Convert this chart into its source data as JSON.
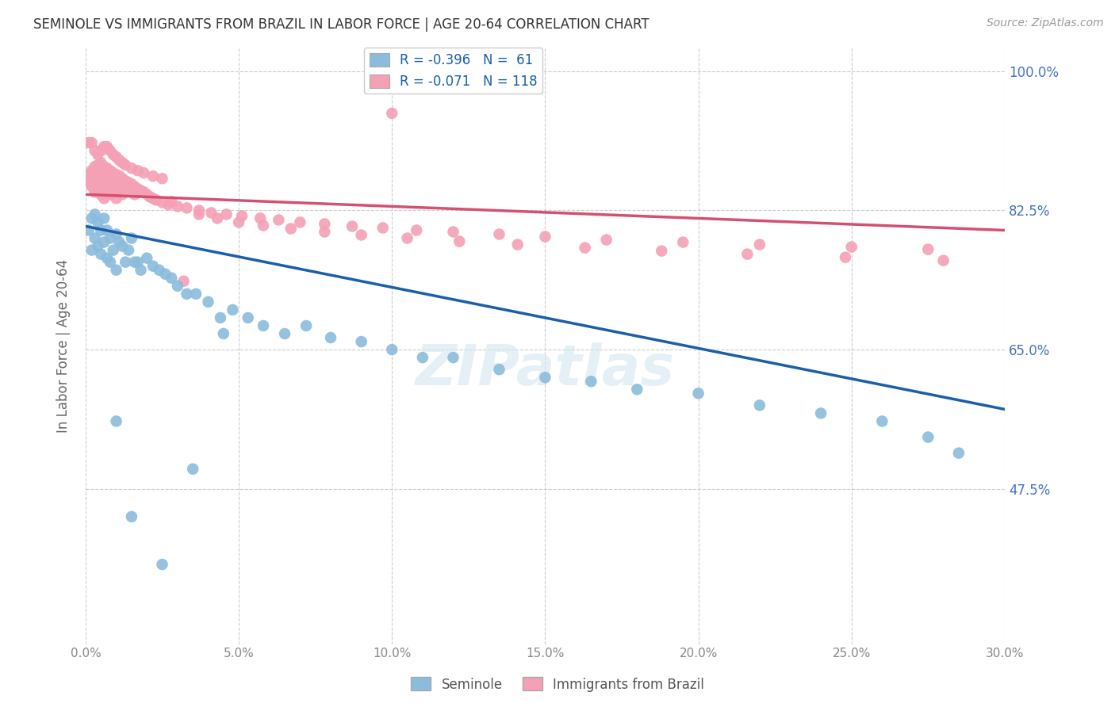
{
  "title": "SEMINOLE VS IMMIGRANTS FROM BRAZIL IN LABOR FORCE | AGE 20-64 CORRELATION CHART",
  "source": "Source: ZipAtlas.com",
  "ylabel": "In Labor Force | Age 20-64",
  "xlim": [
    0.0,
    0.3
  ],
  "ylim": [
    0.28,
    1.03
  ],
  "yticks": [
    0.475,
    0.65,
    0.825,
    1.0
  ],
  "ytick_labels": [
    "47.5%",
    "65.0%",
    "82.5%",
    "100.0%"
  ],
  "xticks": [
    0.0,
    0.05,
    0.1,
    0.15,
    0.2,
    0.25,
    0.3
  ],
  "xtick_labels": [
    "0.0%",
    "5.0%",
    "10.0%",
    "15.0%",
    "20.0%",
    "25.0%",
    "30.0%"
  ],
  "blue_color": "#8bbcdc",
  "pink_color": "#f4a0b5",
  "blue_line_color": "#1a5faa",
  "pink_line_color": "#d45070",
  "R_blue": -0.396,
  "N_blue": 61,
  "R_pink": -0.071,
  "N_pink": 118,
  "legend_label_blue": "Seminole",
  "legend_label_pink": "Immigrants from Brazil",
  "watermark": "ZIPatlas",
  "blue_line_x0": 0.0,
  "blue_line_y0": 0.805,
  "blue_line_x1": 0.3,
  "blue_line_y1": 0.575,
  "pink_line_x0": 0.0,
  "pink_line_y0": 0.845,
  "pink_line_x1": 0.3,
  "pink_line_y1": 0.8,
  "blue_scatter_x": [
    0.001,
    0.002,
    0.002,
    0.003,
    0.003,
    0.004,
    0.004,
    0.005,
    0.005,
    0.006,
    0.006,
    0.007,
    0.007,
    0.008,
    0.008,
    0.009,
    0.01,
    0.01,
    0.011,
    0.012,
    0.013,
    0.014,
    0.015,
    0.016,
    0.017,
    0.018,
    0.02,
    0.022,
    0.024,
    0.026,
    0.028,
    0.03,
    0.033,
    0.036,
    0.04,
    0.044,
    0.048,
    0.053,
    0.058,
    0.065,
    0.072,
    0.08,
    0.09,
    0.1,
    0.11,
    0.12,
    0.135,
    0.15,
    0.165,
    0.18,
    0.2,
    0.22,
    0.24,
    0.26,
    0.275,
    0.285,
    0.01,
    0.015,
    0.025,
    0.035,
    0.045
  ],
  "blue_scatter_y": [
    0.8,
    0.815,
    0.775,
    0.82,
    0.79,
    0.81,
    0.78,
    0.8,
    0.77,
    0.815,
    0.785,
    0.8,
    0.765,
    0.79,
    0.76,
    0.775,
    0.795,
    0.75,
    0.785,
    0.78,
    0.76,
    0.775,
    0.79,
    0.76,
    0.76,
    0.75,
    0.765,
    0.755,
    0.75,
    0.745,
    0.74,
    0.73,
    0.72,
    0.72,
    0.71,
    0.69,
    0.7,
    0.69,
    0.68,
    0.67,
    0.68,
    0.665,
    0.66,
    0.65,
    0.64,
    0.64,
    0.625,
    0.615,
    0.61,
    0.6,
    0.595,
    0.58,
    0.57,
    0.56,
    0.54,
    0.52,
    0.56,
    0.44,
    0.38,
    0.5,
    0.67
  ],
  "pink_scatter_x": [
    0.001,
    0.001,
    0.002,
    0.002,
    0.002,
    0.003,
    0.003,
    0.003,
    0.003,
    0.004,
    0.004,
    0.004,
    0.004,
    0.005,
    0.005,
    0.005,
    0.005,
    0.005,
    0.006,
    0.006,
    0.006,
    0.006,
    0.006,
    0.007,
    0.007,
    0.007,
    0.007,
    0.008,
    0.008,
    0.008,
    0.008,
    0.009,
    0.009,
    0.009,
    0.01,
    0.01,
    0.01,
    0.01,
    0.011,
    0.011,
    0.011,
    0.012,
    0.012,
    0.012,
    0.013,
    0.013,
    0.014,
    0.014,
    0.015,
    0.015,
    0.016,
    0.016,
    0.017,
    0.018,
    0.019,
    0.02,
    0.021,
    0.022,
    0.023,
    0.025,
    0.027,
    0.03,
    0.033,
    0.037,
    0.041,
    0.046,
    0.051,
    0.057,
    0.063,
    0.07,
    0.078,
    0.087,
    0.097,
    0.108,
    0.12,
    0.135,
    0.15,
    0.17,
    0.195,
    0.22,
    0.25,
    0.275,
    0.001,
    0.002,
    0.003,
    0.004,
    0.005,
    0.006,
    0.007,
    0.008,
    0.009,
    0.01,
    0.011,
    0.012,
    0.013,
    0.015,
    0.017,
    0.019,
    0.022,
    0.025,
    0.028,
    0.032,
    0.037,
    0.043,
    0.05,
    0.058,
    0.067,
    0.078,
    0.09,
    0.105,
    0.122,
    0.141,
    0.163,
    0.188,
    0.216,
    0.248,
    0.28,
    0.1
  ],
  "pink_scatter_y": [
    0.86,
    0.87,
    0.875,
    0.865,
    0.855,
    0.88,
    0.87,
    0.858,
    0.848,
    0.882,
    0.872,
    0.862,
    0.852,
    0.885,
    0.875,
    0.865,
    0.855,
    0.845,
    0.88,
    0.87,
    0.86,
    0.85,
    0.84,
    0.878,
    0.868,
    0.858,
    0.848,
    0.875,
    0.865,
    0.855,
    0.845,
    0.872,
    0.862,
    0.852,
    0.87,
    0.86,
    0.85,
    0.84,
    0.868,
    0.858,
    0.848,
    0.865,
    0.855,
    0.845,
    0.862,
    0.852,
    0.86,
    0.85,
    0.858,
    0.848,
    0.855,
    0.845,
    0.852,
    0.85,
    0.848,
    0.845,
    0.842,
    0.84,
    0.838,
    0.835,
    0.832,
    0.83,
    0.828,
    0.825,
    0.822,
    0.82,
    0.818,
    0.815,
    0.813,
    0.81,
    0.808,
    0.805,
    0.803,
    0.8,
    0.798,
    0.795,
    0.792,
    0.788,
    0.785,
    0.782,
    0.779,
    0.776,
    0.91,
    0.91,
    0.9,
    0.895,
    0.9,
    0.905,
    0.905,
    0.9,
    0.895,
    0.892,
    0.888,
    0.885,
    0.882,
    0.878,
    0.875,
    0.872,
    0.868,
    0.865,
    0.836,
    0.736,
    0.82,
    0.815,
    0.81,
    0.806,
    0.802,
    0.798,
    0.794,
    0.79,
    0.786,
    0.782,
    0.778,
    0.774,
    0.77,
    0.766,
    0.762,
    0.947
  ]
}
